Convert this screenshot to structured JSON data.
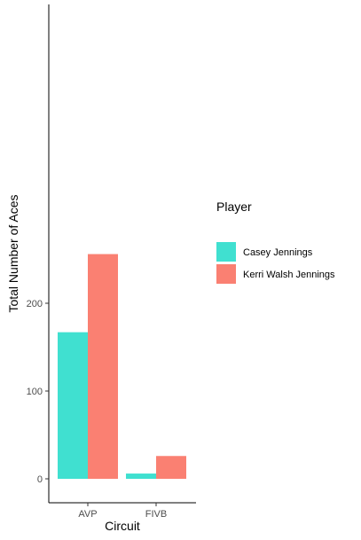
{
  "chart_data": {
    "type": "bar",
    "categories": [
      "AVP",
      "FIVB"
    ],
    "series": [
      {
        "name": "Casey Jennings",
        "values": [
          167,
          6
        ],
        "color": "#40E0D0"
      },
      {
        "name": "Kerri Walsh Jennings",
        "values": [
          256,
          26
        ],
        "color": "#FA8072"
      }
    ],
    "xlabel": "Circuit",
    "ylabel": "Total Number of Aces",
    "ylim": [
      0,
      270
    ],
    "yticks": [
      0,
      100,
      200
    ],
    "grid": false,
    "legend": {
      "title": "Player",
      "placement": "right"
    }
  }
}
